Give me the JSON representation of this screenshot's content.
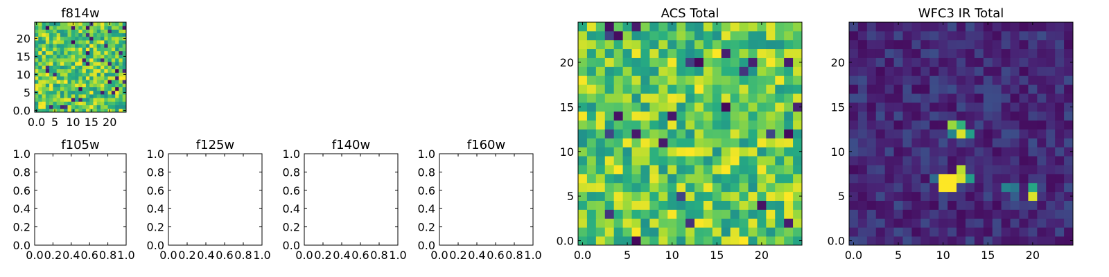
{
  "chart_data": [
    {
      "type": "heatmap",
      "title": "f814w",
      "grid_size": 25,
      "colormap": "viridis",
      "pattern": "noise_high",
      "xticks": [
        0,
        5,
        10,
        15,
        20
      ],
      "yticks": [
        0,
        5,
        10,
        15,
        20
      ],
      "xlim": [
        -0.5,
        24.5
      ],
      "ylim": [
        -0.5,
        24.5
      ]
    },
    {
      "type": "empty",
      "title": "f105w",
      "xticks": [
        0.0,
        0.2,
        0.4,
        0.6,
        0.8,
        1.0
      ],
      "yticks": [
        0.0,
        0.2,
        0.4,
        0.6,
        0.8,
        1.0
      ],
      "xlim": [
        0,
        1
      ],
      "ylim": [
        0,
        1
      ]
    },
    {
      "type": "empty",
      "title": "f125w",
      "xticks": [
        0.0,
        0.2,
        0.4,
        0.6,
        0.8,
        1.0
      ],
      "yticks": [
        0.0,
        0.2,
        0.4,
        0.6,
        0.8,
        1.0
      ],
      "xlim": [
        0,
        1
      ],
      "ylim": [
        0,
        1
      ]
    },
    {
      "type": "empty",
      "title": "f140w",
      "xticks": [
        0.0,
        0.2,
        0.4,
        0.6,
        0.8,
        1.0
      ],
      "yticks": [
        0.0,
        0.2,
        0.4,
        0.6,
        0.8,
        1.0
      ],
      "xlim": [
        0,
        1
      ],
      "ylim": [
        0,
        1
      ]
    },
    {
      "type": "empty",
      "title": "f160w",
      "xticks": [
        0.0,
        0.2,
        0.4,
        0.6,
        0.8,
        1.0
      ],
      "yticks": [
        0.0,
        0.2,
        0.4,
        0.6,
        0.8,
        1.0
      ],
      "xlim": [
        0,
        1
      ],
      "ylim": [
        0,
        1
      ]
    },
    {
      "type": "heatmap",
      "title": "ACS Total",
      "grid_size": 25,
      "colormap": "viridis",
      "pattern": "noise_high",
      "xticks": [
        0,
        5,
        10,
        15,
        20
      ],
      "yticks": [
        0,
        5,
        10,
        15,
        20
      ],
      "xlim": [
        -0.5,
        24.5
      ],
      "ylim": [
        -0.5,
        24.5
      ]
    },
    {
      "type": "heatmap",
      "title": "WFC3 IR Total",
      "grid_size": 25,
      "colormap": "viridis",
      "pattern": "sources_low",
      "sources": [
        {
          "x": 10,
          "y": 6,
          "value": 1.0
        },
        {
          "x": 11,
          "y": 6,
          "value": 1.0
        },
        {
          "x": 10,
          "y": 7,
          "value": 1.0
        },
        {
          "x": 11,
          "y": 7,
          "value": 1.0
        },
        {
          "x": 12,
          "y": 7,
          "value": 0.95
        },
        {
          "x": 12,
          "y": 8,
          "value": 0.9
        },
        {
          "x": 13,
          "y": 7,
          "value": 0.55
        },
        {
          "x": 9,
          "y": 7,
          "value": 0.35
        },
        {
          "x": 11,
          "y": 13,
          "value": 0.85
        },
        {
          "x": 12,
          "y": 13,
          "value": 0.65
        },
        {
          "x": 12,
          "y": 12,
          "value": 0.95
        },
        {
          "x": 13,
          "y": 12,
          "value": 0.55
        },
        {
          "x": 11,
          "y": 12,
          "value": 0.45
        },
        {
          "x": 20,
          "y": 5,
          "value": 0.95
        },
        {
          "x": 20,
          "y": 6,
          "value": 0.6
        },
        {
          "x": 17,
          "y": 6,
          "value": 0.45
        },
        {
          "x": 18,
          "y": 6,
          "value": 0.4
        },
        {
          "x": 18,
          "y": 5,
          "value": 0.3
        }
      ],
      "xticks": [
        0,
        5,
        10,
        15,
        20
      ],
      "yticks": [
        0,
        5,
        10,
        15,
        20
      ],
      "xlim": [
        -0.5,
        24.5
      ],
      "ylim": [
        -0.5,
        24.5
      ]
    }
  ]
}
